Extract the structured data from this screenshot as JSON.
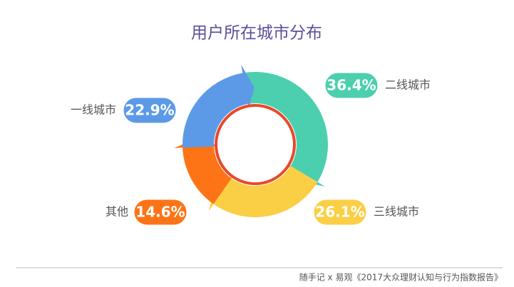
{
  "chart_data": {
    "type": "pie",
    "title": "用户所在城市分布",
    "categories": [
      "二线城市",
      "三线城市",
      "其他",
      "一线城市"
    ],
    "values": [
      36.4,
      26.1,
      14.6,
      22.9
    ],
    "value_labels": [
      "36.4%",
      "26.1%",
      "14.6%",
      "22.9%"
    ],
    "colors": [
      "#4ccfae",
      "#fbcf45",
      "#fd7417",
      "#5c9ae8"
    ],
    "source": "随手记 x 易观《2017大众理财认知与行为指数报告》"
  }
}
